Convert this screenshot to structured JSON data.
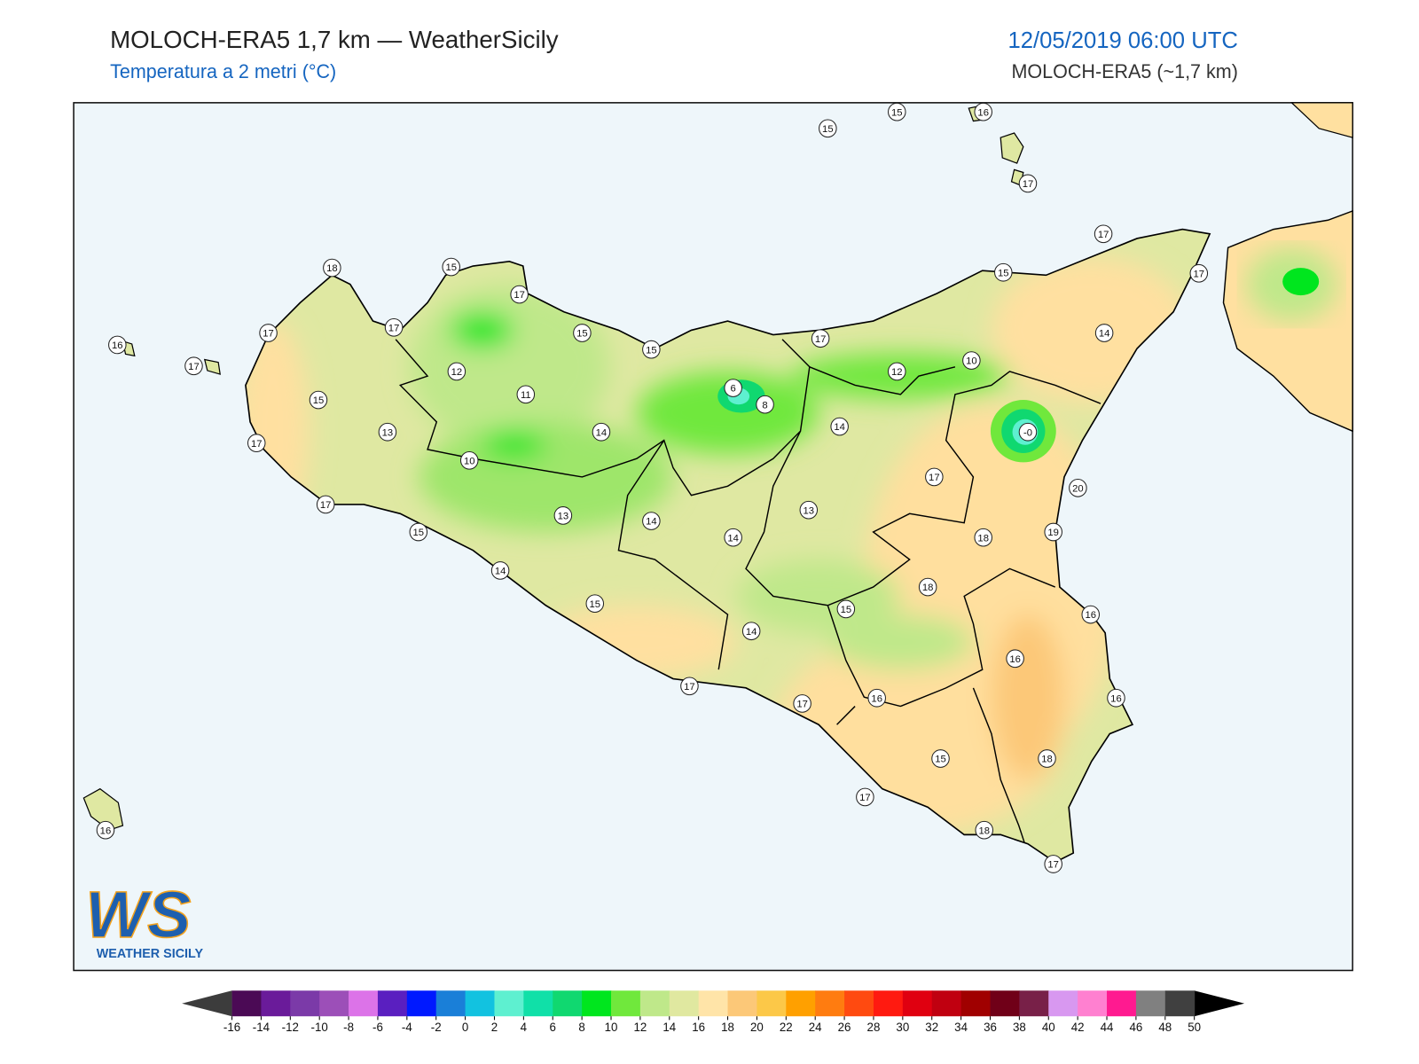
{
  "header": {
    "title": "MOLOCH-ERA5 1,7 km — WeatherSicily",
    "subtitle": "Temperatura a 2 metri (°C)",
    "date": "12/05/2019 06:00 UTC",
    "model": "MOLOCH-ERA5 (~1,7 km)"
  },
  "stations": [
    15,
    15,
    16,
    17,
    17,
    17,
    15,
    14,
    18,
    15,
    17,
    17,
    17,
    16,
    17,
    15,
    15,
    17,
    12,
    11,
    15,
    13,
    14,
    6,
    8,
    12,
    10,
    14,
    {
      "value": 0,
      "label": "-0"
    },
    17,
    10,
    17,
    20,
    17,
    13,
    13,
    14,
    15,
    14,
    18,
    19,
    14,
    18,
    15,
    15,
    16,
    14,
    16,
    17,
    17,
    16,
    16,
    15,
    18,
    17,
    16,
    18,
    17
  ],
  "colorbar": {
    "ticks": [
      -16,
      -14,
      -12,
      -10,
      -8,
      -6,
      -4,
      -2,
      0,
      2,
      4,
      6,
      8,
      10,
      12,
      14,
      16,
      18,
      20,
      22,
      24,
      26,
      28,
      30,
      32,
      34,
      36,
      38,
      40,
      42,
      44,
      46,
      48,
      50
    ],
    "colors": [
      "#4b0a55",
      "#6a1b9a",
      "#7b3aa8",
      "#9c4fb8",
      "#dc73e8",
      "#5a1fc0",
      "#0019ff",
      "#1a7fd8",
      "#12c2e0",
      "#5ef0d0",
      "#10e0a8",
      "#10d870",
      "#00e61e",
      "#70e83c",
      "#bfe88a",
      "#e0e8a0",
      "#ffe4a8",
      "#fcc878",
      "#fcc848",
      "#ffa000",
      "#ff7c10",
      "#ff4a10",
      "#ff1a10",
      "#e00010",
      "#c00010",
      "#a00000",
      "#700018",
      "#782048",
      "#d898f0",
      "#ff80d0",
      "#ff1a90",
      "#808080",
      "#404040"
    ],
    "under": "#3c3c3c",
    "over": "#000000"
  },
  "logo": {
    "letters": "WS",
    "name": "WEATHER SICILY"
  }
}
